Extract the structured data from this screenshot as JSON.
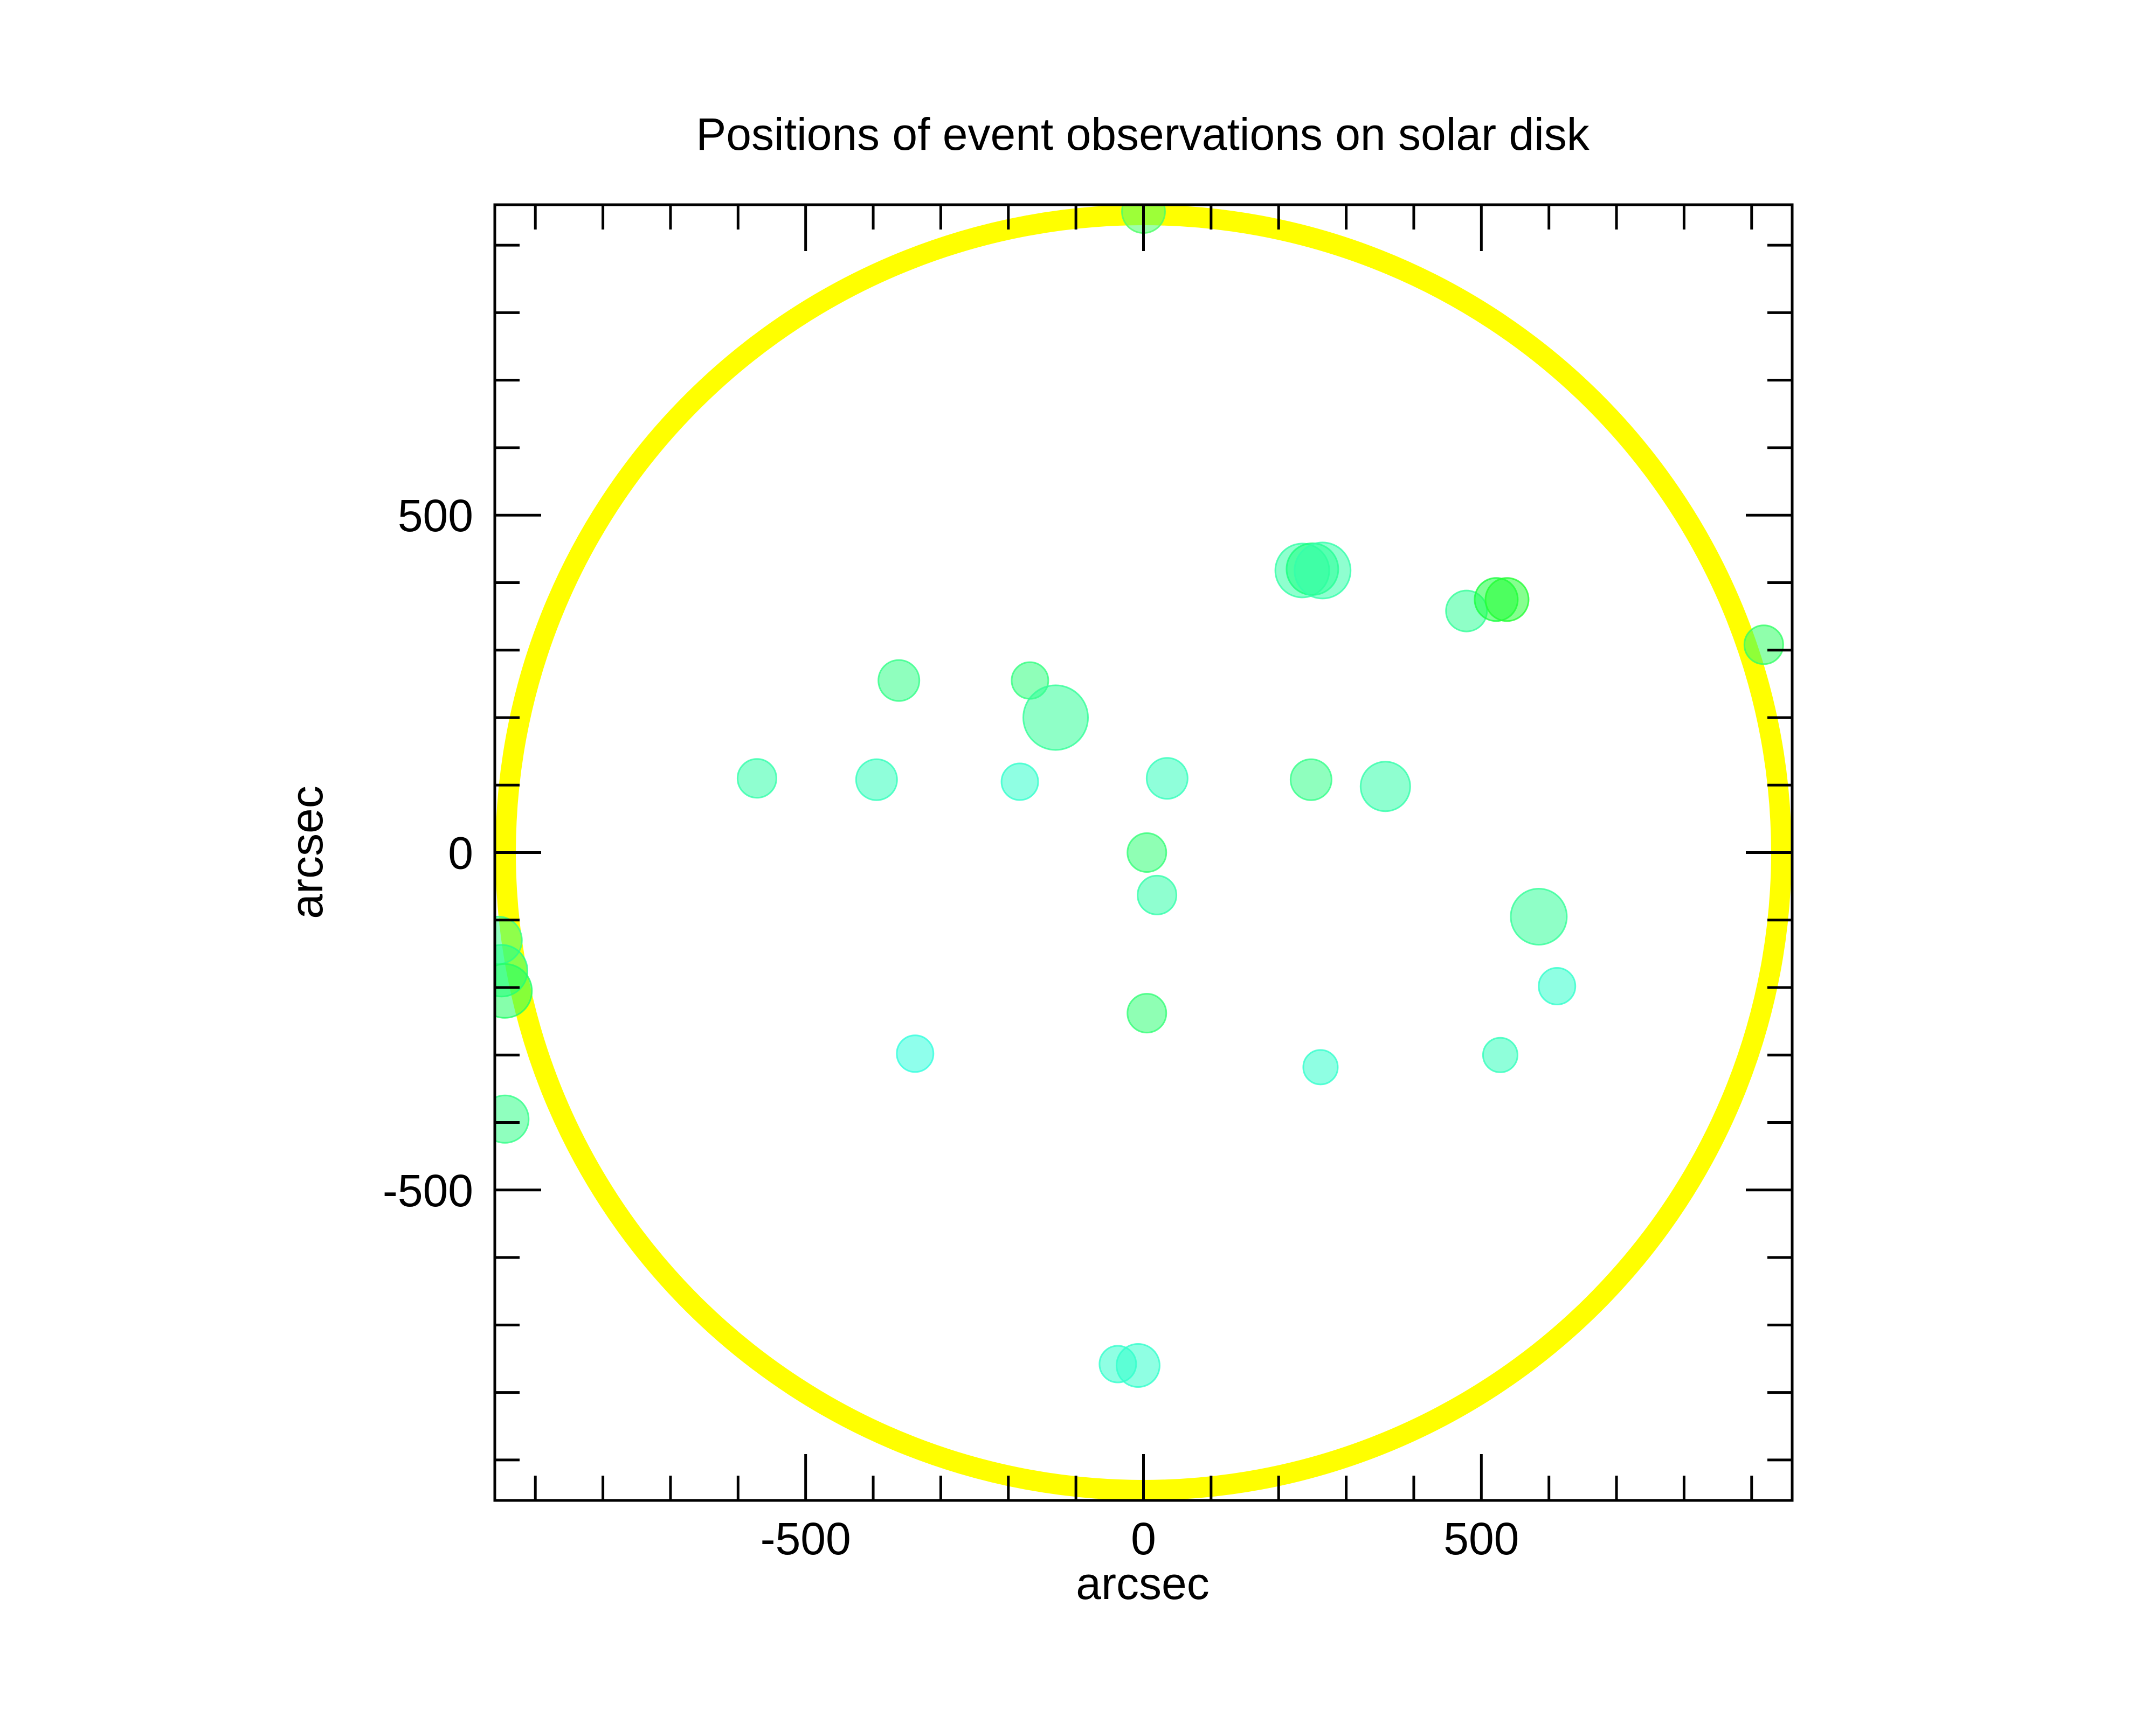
{
  "chart_data": {
    "type": "scatter",
    "title": "Positions of event observations on solar disk",
    "xlabel": "arcsec",
    "ylabel": "arcsec",
    "xlim": [
      -960,
      960
    ],
    "ylim": [
      -960,
      960
    ],
    "x_ticks": [
      -500,
      0,
      500
    ],
    "y_ticks": [
      -500,
      0,
      500
    ],
    "x_minor_step": 100,
    "y_minor_step": 100,
    "grid": false,
    "solar_limb": {
      "radius": 960,
      "color": "#ffff00"
    },
    "points": [
      {
        "x": 0,
        "y": 950,
        "size": 1.0,
        "color": "#4dff66"
      },
      {
        "x": 235,
        "y": 418,
        "size": 1.25,
        "color": "#33ffa6"
      },
      {
        "x": 250,
        "y": 420,
        "size": 1.2,
        "color": "#1aff80"
      },
      {
        "x": 265,
        "y": 418,
        "size": 1.3,
        "color": "#33ffaa"
      },
      {
        "x": 478,
        "y": 358,
        "size": 0.95,
        "color": "#33ff99"
      },
      {
        "x": 522,
        "y": 375,
        "size": 1.0,
        "color": "#1aff40"
      },
      {
        "x": 538,
        "y": 375,
        "size": 1.0,
        "color": "#22ff33"
      },
      {
        "x": 918,
        "y": 308,
        "size": 0.9,
        "color": "#33ff66"
      },
      {
        "x": -362,
        "y": 255,
        "size": 0.95,
        "color": "#33ff88"
      },
      {
        "x": -168,
        "y": 255,
        "size": 0.85,
        "color": "#33ff80"
      },
      {
        "x": -130,
        "y": 200,
        "size": 1.5,
        "color": "#33ff99"
      },
      {
        "x": -572,
        "y": 110,
        "size": 0.9,
        "color": "#33ffaa"
      },
      {
        "x": -395,
        "y": 108,
        "size": 0.95,
        "color": "#33ffbb"
      },
      {
        "x": -183,
        "y": 105,
        "size": 0.85,
        "color": "#33ffcc"
      },
      {
        "x": 35,
        "y": 110,
        "size": 0.95,
        "color": "#33ffbb"
      },
      {
        "x": 248,
        "y": 108,
        "size": 0.95,
        "color": "#33ff88"
      },
      {
        "x": 358,
        "y": 98,
        "size": 1.15,
        "color": "#33ffaa"
      },
      {
        "x": 5,
        "y": 0,
        "size": 0.9,
        "color": "#33ff77"
      },
      {
        "x": 20,
        "y": -63,
        "size": 0.9,
        "color": "#33ffaa"
      },
      {
        "x": 585,
        "y": -95,
        "size": 1.3,
        "color": "#33ff99"
      },
      {
        "x": -955,
        "y": -130,
        "size": 1.1,
        "color": "#33ff88"
      },
      {
        "x": -950,
        "y": -175,
        "size": 1.2,
        "color": "#22ff88"
      },
      {
        "x": -945,
        "y": -205,
        "size": 1.25,
        "color": "#22ff66"
      },
      {
        "x": 612,
        "y": -198,
        "size": 0.85,
        "color": "#33ffcc"
      },
      {
        "x": 5,
        "y": -238,
        "size": 0.9,
        "color": "#33ff77"
      },
      {
        "x": -338,
        "y": -298,
        "size": 0.85,
        "color": "#33ffdd"
      },
      {
        "x": 262,
        "y": -318,
        "size": 0.8,
        "color": "#33ffcc"
      },
      {
        "x": 528,
        "y": -300,
        "size": 0.8,
        "color": "#33ffbb"
      },
      {
        "x": -945,
        "y": -395,
        "size": 1.1,
        "color": "#33ff88"
      },
      {
        "x": -38,
        "y": -758,
        "size": 0.85,
        "color": "#33ffcc"
      },
      {
        "x": -8,
        "y": -760,
        "size": 1.0,
        "color": "#33ffcc"
      }
    ]
  }
}
